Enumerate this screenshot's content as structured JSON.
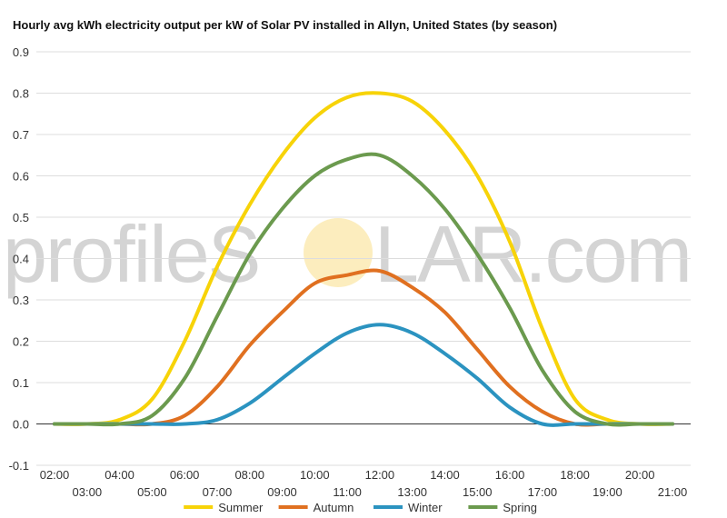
{
  "watermark": {
    "left": "profileS",
    "right": "LAR.com",
    "sun_color": "#fbe7a8"
  },
  "chart_data": {
    "type": "line",
    "title": "Hourly avg kWh electricity output per kW of Solar PV installed in Allyn, United States (by season)",
    "xlabel": "",
    "ylabel": "",
    "ylim": [
      -0.1,
      0.9
    ],
    "yticks": [
      "-0.1",
      "0.0",
      "0.1",
      "0.2",
      "0.3",
      "0.4",
      "0.5",
      "0.6",
      "0.7",
      "0.8",
      "0.9"
    ],
    "x": [
      "02:00",
      "03:00",
      "04:00",
      "05:00",
      "06:00",
      "07:00",
      "08:00",
      "09:00",
      "10:00",
      "11:00",
      "12:00",
      "13:00",
      "14:00",
      "15:00",
      "16:00",
      "17:00",
      "18:00",
      "19:00",
      "20:00",
      "21:00"
    ],
    "grid": true,
    "legend": "bottom",
    "series": [
      {
        "name": "Summer",
        "color": "#f7d308",
        "values": [
          0,
          0,
          0.01,
          0.06,
          0.2,
          0.38,
          0.53,
          0.65,
          0.74,
          0.79,
          0.8,
          0.78,
          0.71,
          0.6,
          0.44,
          0.23,
          0.06,
          0.01,
          0,
          0
        ]
      },
      {
        "name": "Autumn",
        "color": "#e07020",
        "values": [
          0,
          0,
          0,
          0,
          0.02,
          0.09,
          0.19,
          0.27,
          0.34,
          0.36,
          0.37,
          0.33,
          0.27,
          0.18,
          0.09,
          0.03,
          0,
          0,
          0,
          0
        ]
      },
      {
        "name": "Winter",
        "color": "#2b93c0",
        "values": [
          0,
          0,
          0,
          0,
          0,
          0.01,
          0.05,
          0.11,
          0.17,
          0.22,
          0.24,
          0.22,
          0.17,
          0.11,
          0.04,
          0,
          0,
          0,
          0,
          0
        ]
      },
      {
        "name": "Spring",
        "color": "#6b9a4e",
        "values": [
          0,
          0,
          0,
          0.02,
          0.11,
          0.26,
          0.41,
          0.52,
          0.6,
          0.64,
          0.65,
          0.6,
          0.52,
          0.41,
          0.28,
          0.13,
          0.03,
          0,
          0,
          0
        ]
      }
    ]
  }
}
